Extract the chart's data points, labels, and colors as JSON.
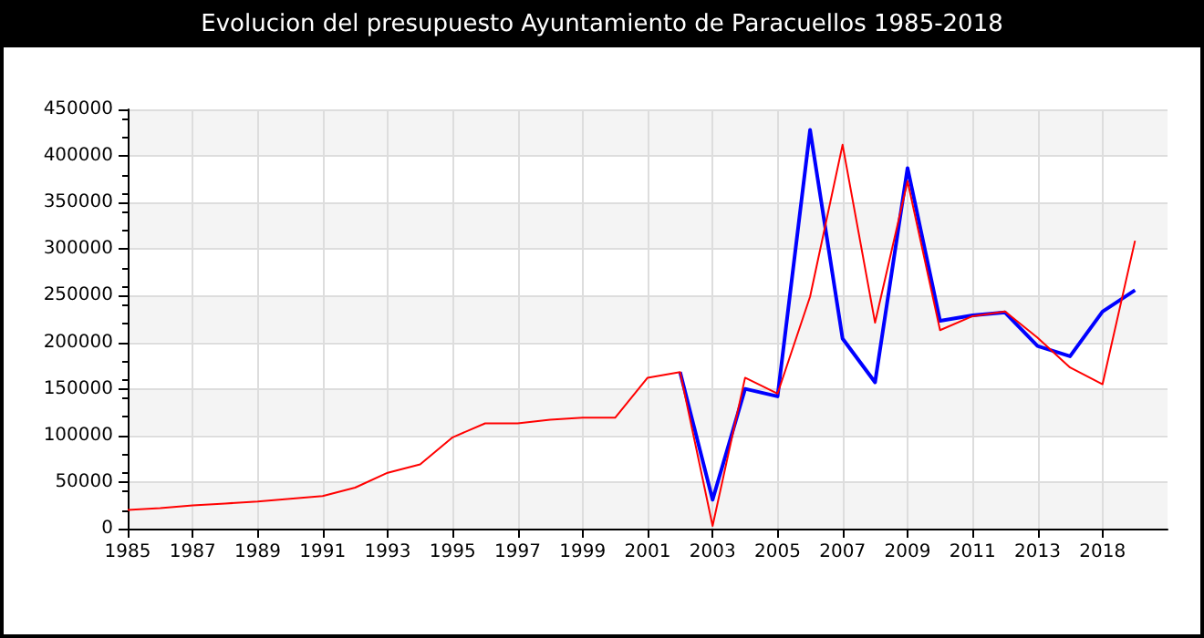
{
  "chart_data": {
    "type": "line",
    "title": "Evolucion del presupuesto Ayuntamiento de Paracuellos 1985-2018",
    "categories": [
      "1985",
      null,
      "1987",
      null,
      "1989",
      null,
      "1991",
      null,
      "1993",
      null,
      "1995",
      null,
      "1997",
      null,
      "1999",
      null,
      "2001",
      null,
      "2003",
      null,
      "2005",
      null,
      "2007",
      null,
      "2009",
      null,
      "2011",
      null,
      "2013",
      null,
      "2018",
      null,
      null
    ],
    "series": [
      {
        "color": "#0000ff",
        "values": [
          null,
          null,
          null,
          null,
          null,
          null,
          null,
          null,
          null,
          null,
          null,
          null,
          null,
          null,
          null,
          null,
          null,
          168000,
          31000,
          150000,
          142000,
          428000,
          204000,
          157000,
          387000,
          223000,
          229000,
          232000,
          196000,
          185000,
          233000,
          256000,
          null
        ]
      },
      {
        "color": "#ff0000",
        "values": [
          20000,
          22000,
          25000,
          27000,
          29000,
          32000,
          35000,
          44000,
          60000,
          69000,
          98000,
          113000,
          113000,
          117000,
          119000,
          119000,
          162000,
          168000,
          3000,
          162000,
          145000,
          249000,
          412000,
          221000,
          373000,
          213000,
          228000,
          233000,
          205000,
          173000,
          155000,
          309000,
          null
        ]
      }
    ],
    "ylim": [
      0,
      450000
    ],
    "yticks": [
      0,
      50000,
      100000,
      150000,
      200000,
      250000,
      300000,
      350000,
      400000,
      450000
    ],
    "grid": true,
    "marker": "none",
    "line_style": "solid"
  }
}
